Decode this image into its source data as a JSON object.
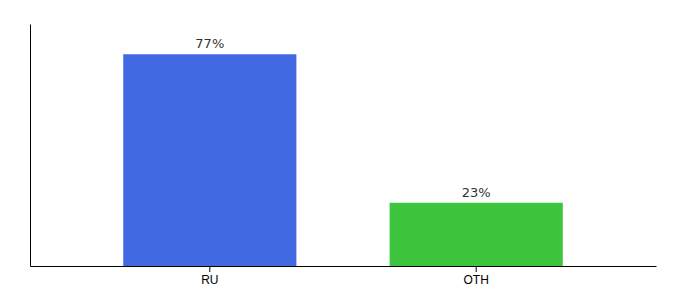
{
  "chart_data": {
    "type": "bar",
    "categories": [
      "RU",
      "OTH"
    ],
    "values": [
      77,
      23
    ],
    "colors": [
      "#4169e1",
      "#3dc63d"
    ],
    "ylim": [
      0,
      88
    ],
    "data_labels": true,
    "value_labels": [
      "77%",
      "23%"
    ],
    "tick_labels": "x",
    "grid": false
  }
}
